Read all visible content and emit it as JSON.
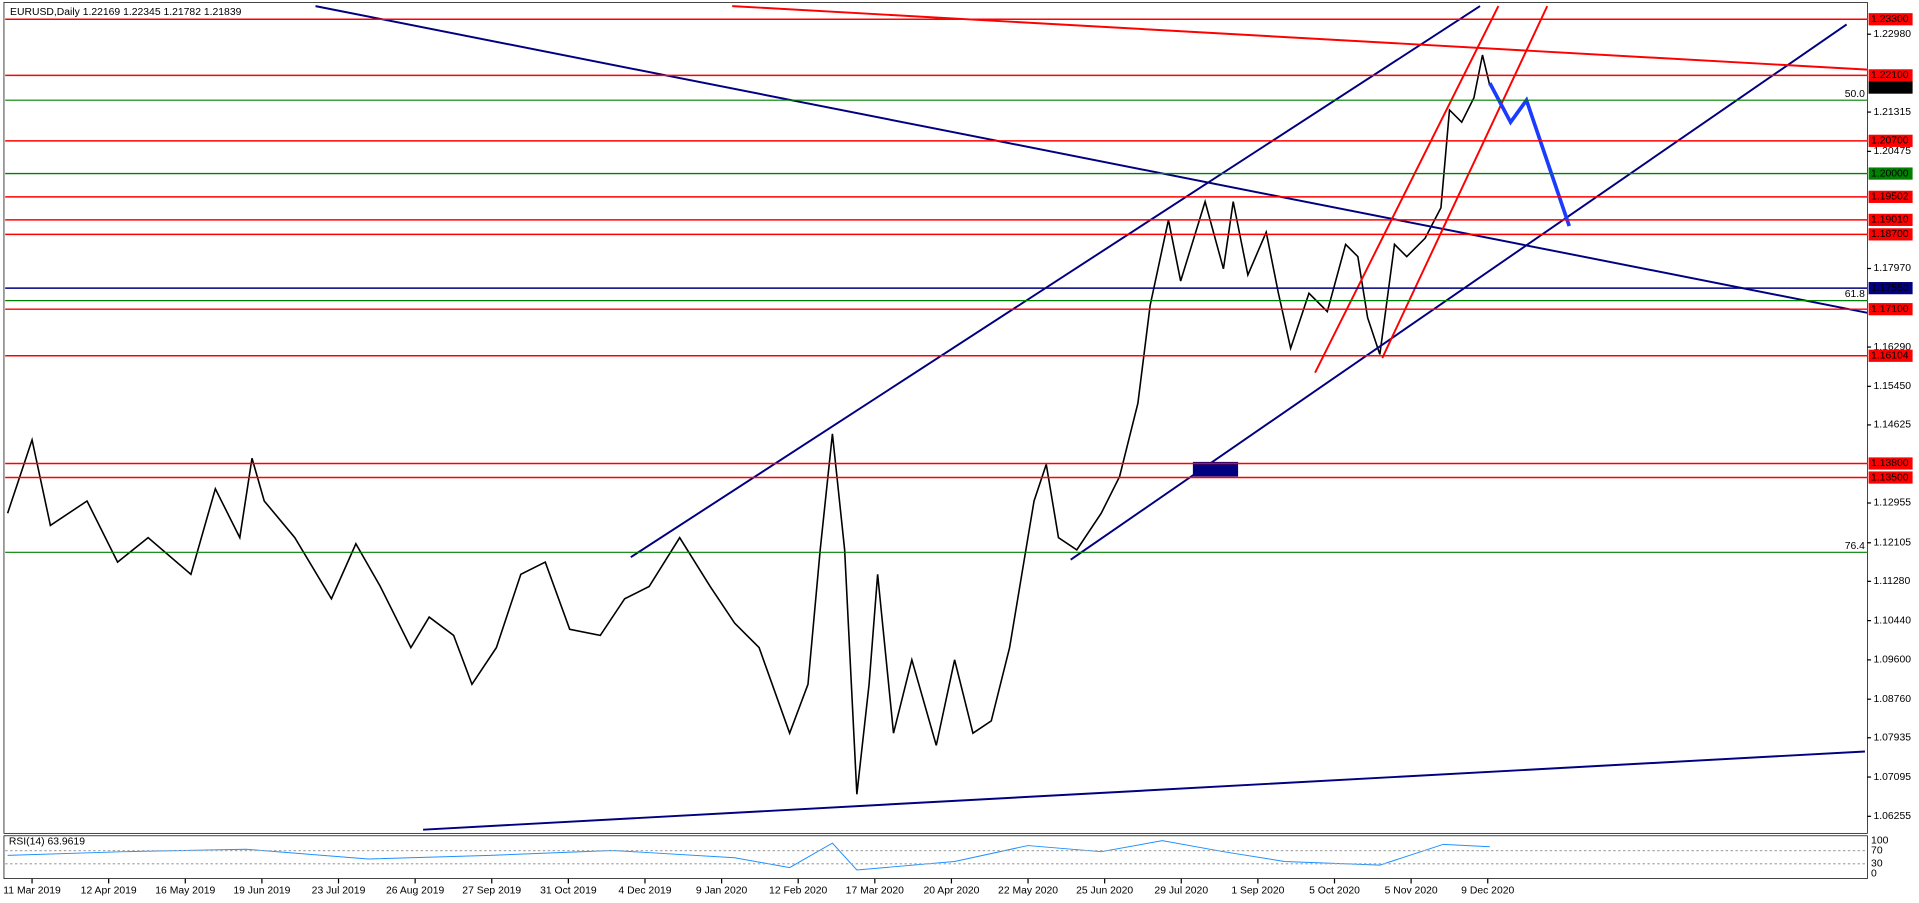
{
  "header": "EURUSD,Daily  1.22169 1.22345 1.21782 1.21839",
  "price_axis": [
    {
      "value": 1.2298,
      "label": "1.22980"
    },
    {
      "value": 1.21315,
      "label": "1.21315"
    },
    {
      "value": 1.20475,
      "label": "1.20475"
    },
    {
      "value": 1.1797,
      "label": "1.17970"
    },
    {
      "value": 1.1629,
      "label": "1.16290"
    },
    {
      "value": 1.1545,
      "label": "1.15450"
    },
    {
      "value": 1.14625,
      "label": "1.14625"
    },
    {
      "value": 1.12955,
      "label": "1.12955"
    },
    {
      "value": 1.12105,
      "label": "1.12105"
    },
    {
      "value": 1.1128,
      "label": "1.11280"
    },
    {
      "value": 1.1044,
      "label": "1.10440"
    },
    {
      "value": 1.096,
      "label": "1.09600"
    },
    {
      "value": 1.0876,
      "label": "1.08760"
    },
    {
      "value": 1.07935,
      "label": "1.07935"
    },
    {
      "value": 1.07095,
      "label": "1.07095"
    },
    {
      "value": 1.06255,
      "label": "1.06255"
    }
  ],
  "levels": [
    {
      "value": 1.233,
      "label": "1.23300",
      "color": "#ff0000"
    },
    {
      "value": 1.221,
      "label": "1.22100",
      "color": "#ff0000"
    },
    {
      "value": 1.21839,
      "label": "1.21839",
      "color": "#000000"
    },
    {
      "value": 1.207,
      "label": "1.20700",
      "color": "#ff0000"
    },
    {
      "value": 1.2,
      "label": "1.20000",
      "color": "#008000"
    },
    {
      "value": 1.19502,
      "label": "1.19502",
      "color": "#ff0000"
    },
    {
      "value": 1.1901,
      "label": "1.19010",
      "color": "#ff0000"
    },
    {
      "value": 1.187,
      "label": "1.18700",
      "color": "#ff0000"
    },
    {
      "value": 1.1755,
      "label": "1.17550",
      "color": "#000080"
    },
    {
      "value": 1.171,
      "label": "1.17100",
      "color": "#ff0000"
    },
    {
      "value": 1.16104,
      "label": "1.16104",
      "color": "#ff0000"
    },
    {
      "value": 1.138,
      "label": "1.13800",
      "color": "#ff0000"
    },
    {
      "value": 1.135,
      "label": "1.13500",
      "color": "#ff0000"
    }
  ],
  "fib_labels": [
    {
      "value": 50,
      "label": "50.0"
    },
    {
      "value": 61.8,
      "label": "61.8"
    },
    {
      "value": 76.4,
      "label": "76.4"
    }
  ],
  "dates": [
    "11 Mar 2019",
    "12 Apr 2019",
    "16 May 2019",
    "19 Jun 2019",
    "23 Jul 2019",
    "26 Aug 2019",
    "27 Sep 2019",
    "31 Oct 2019",
    "4 Dec 2019",
    "9 Jan 2020",
    "12 Feb 2020",
    "17 Mar 2020",
    "20 Apr 2020",
    "22 May 2020",
    "25 Jun 2020",
    "29 Jul 2020",
    "1 Sep 2020",
    "5 Oct 2020",
    "5 Nov 2020",
    "9 Dec 2020"
  ],
  "rsi": {
    "label": "RSI(14) 63.9619",
    "levels": [
      100,
      70,
      30,
      0
    ]
  }
}
